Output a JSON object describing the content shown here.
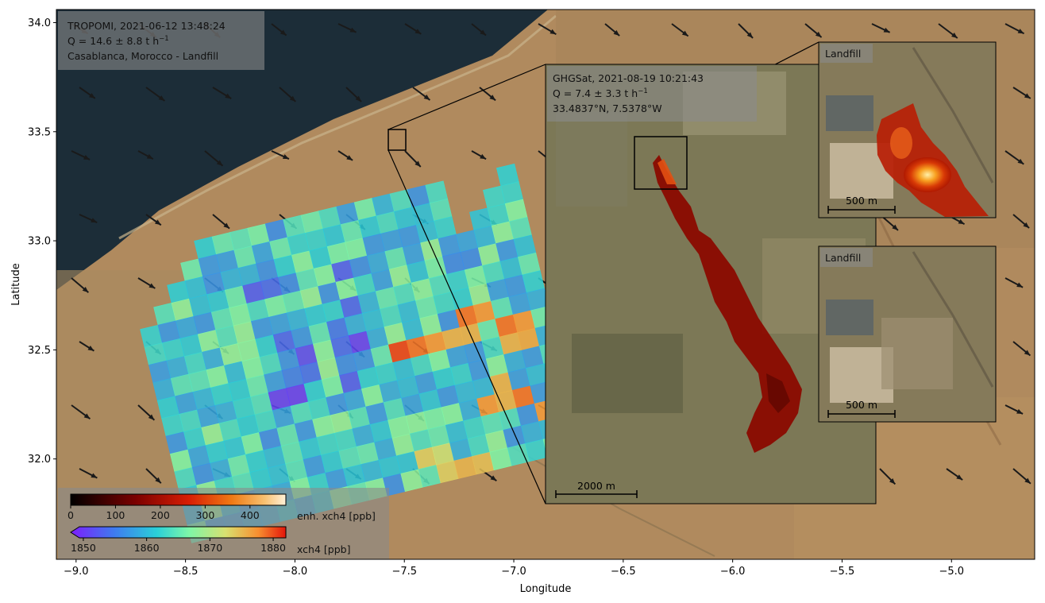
{
  "chart_data": {
    "type": "heatmap",
    "xlabel": "Longitude",
    "ylabel": "Latitude",
    "xlim": [
      -9.09,
      -4.62
    ],
    "ylim": [
      31.54,
      34.06
    ],
    "xticks": [
      -9.0,
      -8.5,
      -8.0,
      -7.5,
      -7.0,
      -6.5,
      -6.0,
      -5.5,
      -5.0
    ],
    "xtick_labels": [
      "−9.0",
      "−8.5",
      "−8.0",
      "−7.5",
      "−7.0",
      "−6.5",
      "−6.0",
      "−5.5",
      "−5.0"
    ],
    "yticks": [
      32.0,
      32.5,
      33.0,
      33.5,
      34.0
    ],
    "ytick_labels": [
      "32.0",
      "32.5",
      "33.0",
      "33.5",
      "34.0"
    ],
    "tropomi": {
      "instrument": "TROPOMI",
      "date": "2021-06-12",
      "time": "13:48:24",
      "q_label": "Q = 14.6 ± 8.8 t h",
      "q_unit_sup": "−1",
      "location": "Casablanca, Morocco  -  Landfill",
      "q_value": 14.6,
      "q_uncertainty": 8.8
    },
    "ghgsat": {
      "instrument": "GHGSat",
      "date": "2021-08-19",
      "time": "10:21:43",
      "q_label": "Q = 7.4 ± 3.3 t h",
      "q_unit_sup": "−1",
      "coords": "33.4837°N, 7.5378°W",
      "q_value": 7.4,
      "q_uncertainty": 3.3,
      "scalebar": "2000 m"
    },
    "insets": [
      {
        "label": "Landfill",
        "scalebar": "500 m",
        "has_plume": true
      },
      {
        "label": "Landfill",
        "scalebar": "500 m",
        "has_plume": false
      }
    ],
    "colorbars": [
      {
        "label": "enh. xch4 [ppb]",
        "min": 0,
        "max": 480,
        "ticks": [
          0,
          100,
          200,
          300,
          400
        ],
        "colormap": "afmhot"
      },
      {
        "label": "xch4 [ppb]",
        "min": 1848,
        "max": 1882,
        "ticks": [
          1850,
          1860,
          1870,
          1880
        ],
        "colormap": "rainbow",
        "extend": "min"
      }
    ],
    "source_box": {
      "lon": [
        -7.55,
        -7.47
      ],
      "lat": [
        33.41,
        33.505
      ]
    }
  },
  "colors": {
    "land": "#b18a5c",
    "sea": "#1c2d38",
    "annotation_box": "#8a8a8a",
    "plume": "#8b0a00"
  }
}
